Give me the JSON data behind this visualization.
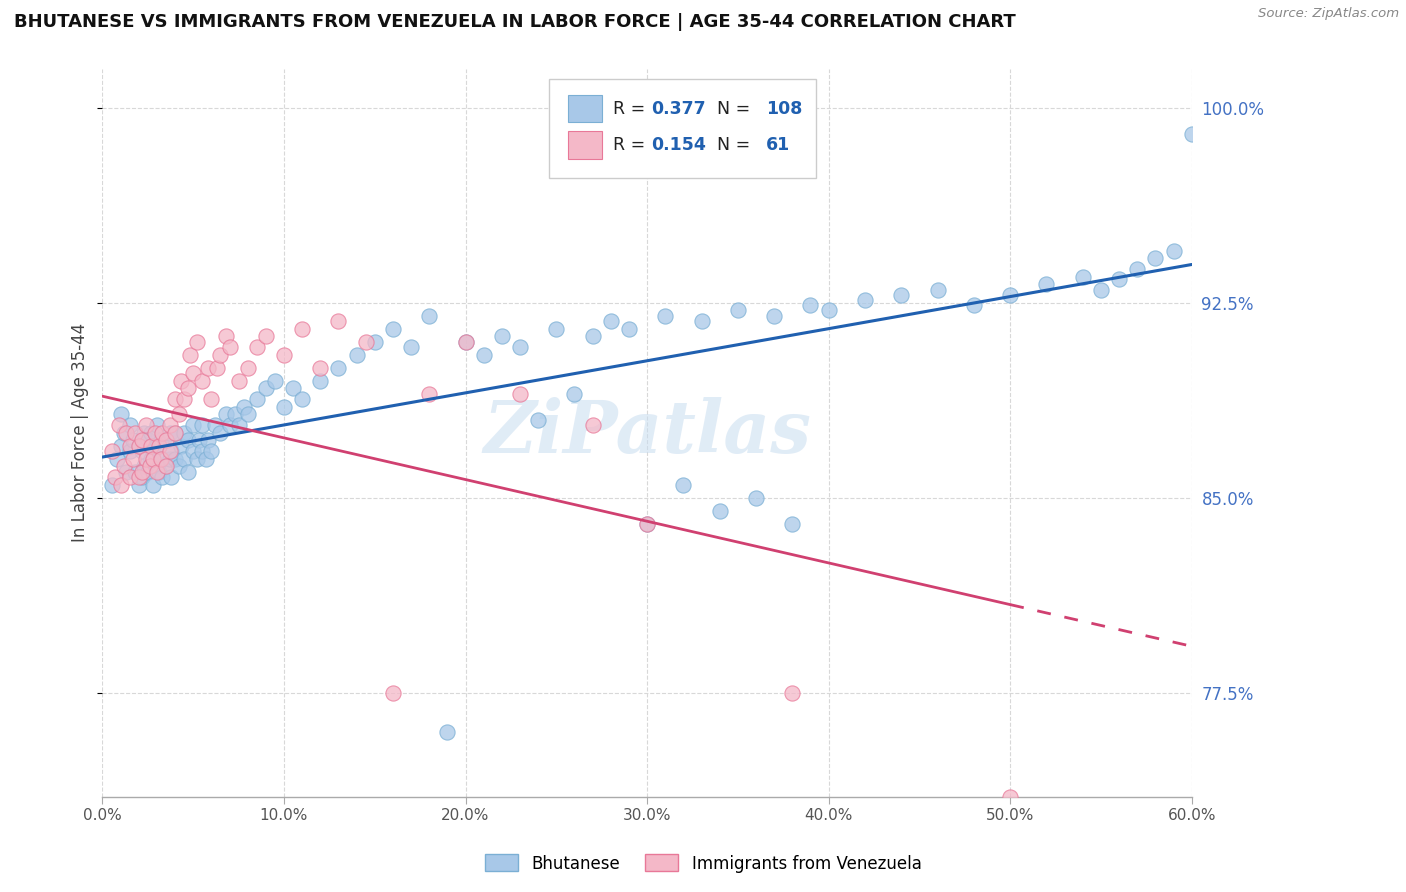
{
  "title": "BHUTANESE VS IMMIGRANTS FROM VENEZUELA IN LABOR FORCE | AGE 35-44 CORRELATION CHART",
  "source": "Source: ZipAtlas.com",
  "ylabel": "In Labor Force | Age 35-44",
  "xlim": [
    0.0,
    0.6
  ],
  "ylim": [
    0.735,
    1.015
  ],
  "yticks": [
    0.775,
    0.85,
    0.925,
    1.0
  ],
  "ytick_labels": [
    "77.5%",
    "85.0%",
    "92.5%",
    "100.0%"
  ],
  "xticks": [
    0.0,
    0.1,
    0.2,
    0.3,
    0.4,
    0.5,
    0.6
  ],
  "xtick_labels": [
    "0.0%",
    "10.0%",
    "20.0%",
    "30.0%",
    "40.0%",
    "50.0%",
    "60.0%"
  ],
  "blue_color": "#a8c8e8",
  "blue_edge": "#7bafd4",
  "pink_color": "#f4b8c8",
  "pink_edge": "#e87898",
  "trend_blue": "#2060b0",
  "trend_pink": "#d04070",
  "R_blue": 0.377,
  "N_blue": 108,
  "R_pink": 0.154,
  "N_pink": 61,
  "legend_blue": "Bhutanese",
  "legend_pink": "Immigrants from Venezuela",
  "blue_scatter_x": [
    0.005,
    0.008,
    0.01,
    0.01,
    0.012,
    0.013,
    0.015,
    0.015,
    0.017,
    0.018,
    0.02,
    0.02,
    0.022,
    0.022,
    0.023,
    0.023,
    0.025,
    0.025,
    0.027,
    0.027,
    0.028,
    0.028,
    0.03,
    0.03,
    0.03,
    0.031,
    0.032,
    0.033,
    0.033,
    0.035,
    0.035,
    0.037,
    0.037,
    0.038,
    0.038,
    0.04,
    0.04,
    0.042,
    0.043,
    0.045,
    0.045,
    0.047,
    0.047,
    0.05,
    0.05,
    0.052,
    0.053,
    0.055,
    0.055,
    0.057,
    0.058,
    0.06,
    0.062,
    0.065,
    0.068,
    0.07,
    0.073,
    0.075,
    0.078,
    0.08,
    0.085,
    0.09,
    0.095,
    0.1,
    0.105,
    0.11,
    0.12,
    0.13,
    0.14,
    0.15,
    0.16,
    0.17,
    0.18,
    0.2,
    0.21,
    0.22,
    0.23,
    0.25,
    0.27,
    0.28,
    0.29,
    0.31,
    0.33,
    0.35,
    0.37,
    0.39,
    0.4,
    0.42,
    0.44,
    0.46,
    0.48,
    0.5,
    0.52,
    0.54,
    0.55,
    0.56,
    0.57,
    0.58,
    0.59,
    0.6,
    0.19,
    0.24,
    0.26,
    0.3,
    0.32,
    0.34,
    0.36,
    0.38
  ],
  "blue_scatter_y": [
    0.855,
    0.865,
    0.87,
    0.882,
    0.875,
    0.86,
    0.868,
    0.878,
    0.872,
    0.86,
    0.855,
    0.87,
    0.858,
    0.868,
    0.862,
    0.875,
    0.86,
    0.872,
    0.865,
    0.875,
    0.855,
    0.868,
    0.862,
    0.87,
    0.878,
    0.86,
    0.872,
    0.858,
    0.865,
    0.862,
    0.872,
    0.865,
    0.875,
    0.858,
    0.868,
    0.865,
    0.875,
    0.862,
    0.87,
    0.865,
    0.875,
    0.86,
    0.872,
    0.868,
    0.878,
    0.865,
    0.872,
    0.868,
    0.878,
    0.865,
    0.872,
    0.868,
    0.878,
    0.875,
    0.882,
    0.878,
    0.882,
    0.878,
    0.885,
    0.882,
    0.888,
    0.892,
    0.895,
    0.885,
    0.892,
    0.888,
    0.895,
    0.9,
    0.905,
    0.91,
    0.915,
    0.908,
    0.92,
    0.91,
    0.905,
    0.912,
    0.908,
    0.915,
    0.912,
    0.918,
    0.915,
    0.92,
    0.918,
    0.922,
    0.92,
    0.924,
    0.922,
    0.926,
    0.928,
    0.93,
    0.924,
    0.928,
    0.932,
    0.935,
    0.93,
    0.934,
    0.938,
    0.942,
    0.945,
    0.99,
    0.76,
    0.88,
    0.89,
    0.84,
    0.855,
    0.845,
    0.85,
    0.84
  ],
  "pink_scatter_x": [
    0.005,
    0.007,
    0.009,
    0.01,
    0.012,
    0.013,
    0.015,
    0.015,
    0.017,
    0.018,
    0.02,
    0.02,
    0.022,
    0.022,
    0.024,
    0.024,
    0.026,
    0.027,
    0.028,
    0.029,
    0.03,
    0.031,
    0.032,
    0.033,
    0.035,
    0.035,
    0.037,
    0.037,
    0.04,
    0.04,
    0.042,
    0.043,
    0.045,
    0.047,
    0.048,
    0.05,
    0.052,
    0.055,
    0.058,
    0.06,
    0.063,
    0.065,
    0.068,
    0.07,
    0.075,
    0.08,
    0.085,
    0.09,
    0.1,
    0.11,
    0.12,
    0.13,
    0.145,
    0.16,
    0.18,
    0.2,
    0.23,
    0.27,
    0.3,
    0.38,
    0.5
  ],
  "pink_scatter_y": [
    0.868,
    0.858,
    0.878,
    0.855,
    0.862,
    0.875,
    0.858,
    0.87,
    0.865,
    0.875,
    0.858,
    0.87,
    0.86,
    0.872,
    0.865,
    0.878,
    0.862,
    0.87,
    0.865,
    0.875,
    0.86,
    0.87,
    0.865,
    0.875,
    0.862,
    0.872,
    0.868,
    0.878,
    0.875,
    0.888,
    0.882,
    0.895,
    0.888,
    0.892,
    0.905,
    0.898,
    0.91,
    0.895,
    0.9,
    0.888,
    0.9,
    0.905,
    0.912,
    0.908,
    0.895,
    0.9,
    0.908,
    0.912,
    0.905,
    0.915,
    0.9,
    0.918,
    0.91,
    0.775,
    0.89,
    0.91,
    0.89,
    0.878,
    0.84,
    0.775,
    0.735
  ]
}
